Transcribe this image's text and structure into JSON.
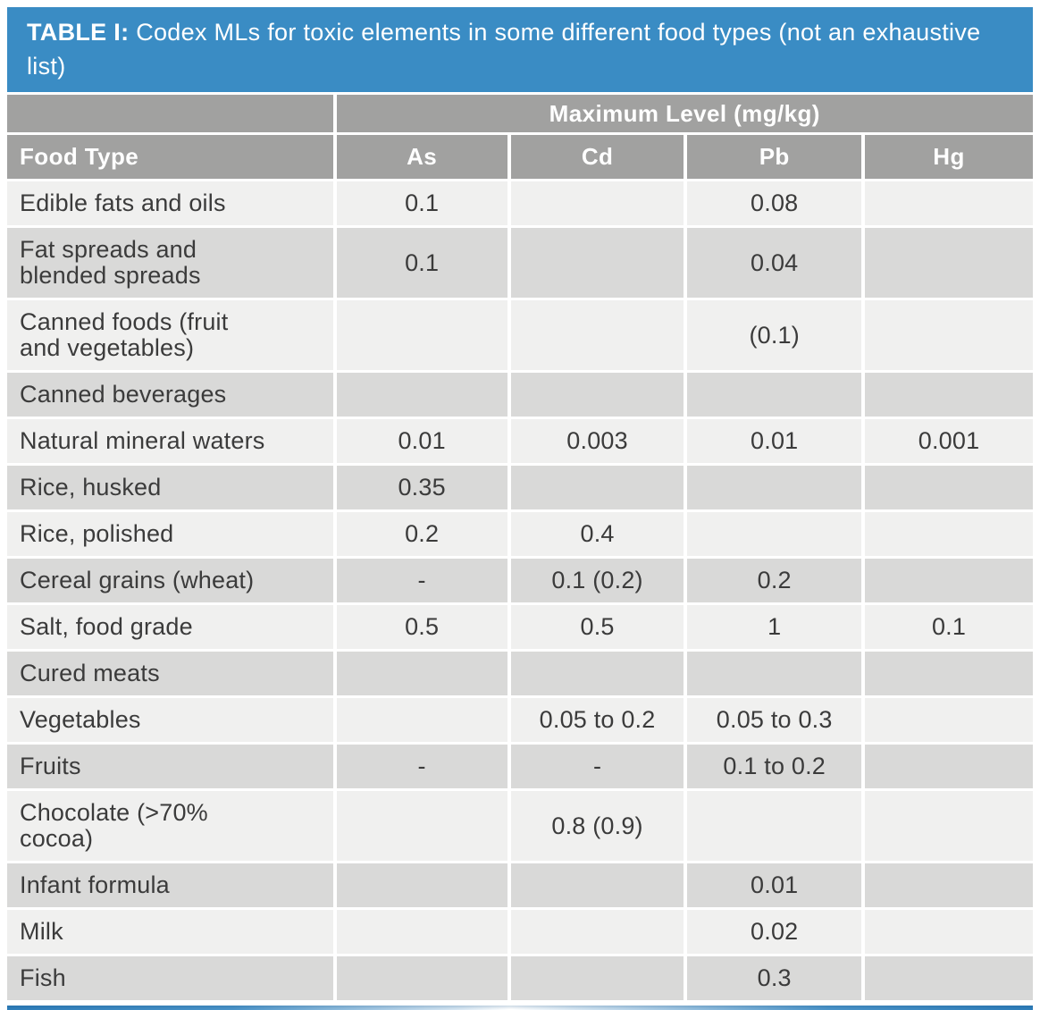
{
  "title": {
    "prefix": "TABLE I:",
    "text": " Codex MLs for toxic elements in some different food types (not an exhaustive list)"
  },
  "header": {
    "group": "Maximum Level (mg/kg)",
    "columns": [
      "Food Type",
      "As",
      "Cd",
      "Pb",
      "Hg"
    ]
  },
  "rows": [
    {
      "food": "Edible fats and oils",
      "values": [
        "0.1",
        "",
        "0.08",
        ""
      ]
    },
    {
      "food": "Fat spreads and blended spreads",
      "values": [
        "0.1",
        "",
        "0.04",
        ""
      ]
    },
    {
      "food": "Canned foods (fruit and vegetables)",
      "values": [
        "",
        "",
        "(0.1)",
        ""
      ]
    },
    {
      "food": "Canned beverages",
      "values": [
        "",
        "",
        "",
        ""
      ]
    },
    {
      "food": "Natural mineral waters",
      "values": [
        "0.01",
        "0.003",
        "0.01",
        "0.001"
      ]
    },
    {
      "food": "Rice, husked",
      "values": [
        "0.35",
        "",
        "",
        ""
      ]
    },
    {
      "food": "Rice, polished",
      "values": [
        "0.2",
        "0.4",
        "",
        ""
      ]
    },
    {
      "food": "Cereal grains (wheat)",
      "values": [
        "-",
        "0.1 (0.2)",
        "0.2",
        ""
      ]
    },
    {
      "food": "Salt, food grade",
      "values": [
        "0.5",
        "0.5",
        "1",
        "0.1"
      ]
    },
    {
      "food": "Cured meats",
      "values": [
        "",
        "",
        "",
        ""
      ]
    },
    {
      "food": "Vegetables",
      "values": [
        "",
        "0.05 to 0.2",
        "0.05 to 0.3",
        ""
      ]
    },
    {
      "food": "Fruits",
      "values": [
        "-",
        "-",
        "0.1 to 0.2",
        ""
      ]
    },
    {
      "food": "Chocolate (>70% cocoa)",
      "values": [
        "",
        "0.8 (0.9)",
        "",
        ""
      ]
    },
    {
      "food": "Infant formula",
      "values": [
        "",
        "",
        "0.01",
        ""
      ]
    },
    {
      "food": "Milk",
      "values": [
        "",
        "",
        "0.02",
        ""
      ]
    },
    {
      "food": "Fish",
      "values": [
        "",
        "",
        "0.3",
        ""
      ]
    }
  ],
  "colors": {
    "title_bar_blue": "#3a8cc4",
    "header_gray": "#a1a1a0",
    "row_light": "#f0f0ef",
    "row_dark": "#d9d9d8",
    "text_dark": "#3b3b3b",
    "accent_bar_blue": "#2e7db9"
  }
}
